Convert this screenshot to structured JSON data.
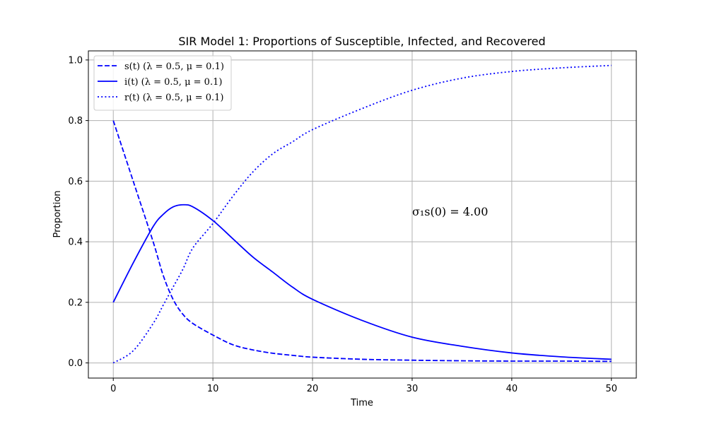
{
  "chart_data": {
    "type": "line",
    "title": "SIR Model 1: Proportions of Susceptible, Infected, and Recovered",
    "xlabel": "Time",
    "ylabel": "Proportion",
    "xlim": [
      -2.5,
      52.5
    ],
    "ylim": [
      -0.05,
      1.03
    ],
    "x_ticks": [
      0,
      10,
      20,
      30,
      40,
      50
    ],
    "y_ticks": [
      0.0,
      0.2,
      0.4,
      0.6,
      0.8,
      1.0
    ],
    "x_tick_labels": [
      "0",
      "10",
      "20",
      "30",
      "40",
      "50"
    ],
    "y_tick_labels": [
      "0.0",
      "0.2",
      "0.4",
      "0.6",
      "0.8",
      "1.0"
    ],
    "grid": true,
    "legend_position": "top-left",
    "color": "#0000ff",
    "annotation": {
      "text": "σ₁s(0) = 4.00",
      "x": 30,
      "y": 0.5
    },
    "x": [
      0,
      2,
      4,
      5,
      6,
      7,
      8,
      10,
      12,
      14,
      16,
      18,
      20,
      25,
      30,
      35,
      40,
      45,
      50
    ],
    "series": [
      {
        "name": "s(t) (λ = 0.5, μ = 0.1)",
        "style": "dashed",
        "values": [
          0.8,
          0.6,
          0.4,
          0.29,
          0.21,
          0.16,
          0.13,
          0.092,
          0.06,
          0.043,
          0.032,
          0.025,
          0.019,
          0.012,
          0.009,
          0.007,
          0.006,
          0.006,
          0.005
        ]
      },
      {
        "name": "i(t) (λ = 0.5, μ = 0.1)",
        "style": "solid",
        "values": [
          0.2,
          0.33,
          0.45,
          0.49,
          0.515,
          0.522,
          0.515,
          0.47,
          0.41,
          0.35,
          0.3,
          0.25,
          0.21,
          0.14,
          0.085,
          0.055,
          0.033,
          0.02,
          0.012
        ]
      },
      {
        "name": "r(t) (λ = 0.5, μ = 0.1)",
        "style": "dotted",
        "values": [
          0.0,
          0.04,
          0.13,
          0.19,
          0.25,
          0.31,
          0.38,
          0.46,
          0.55,
          0.63,
          0.69,
          0.73,
          0.77,
          0.84,
          0.9,
          0.94,
          0.962,
          0.974,
          0.982
        ]
      }
    ]
  }
}
